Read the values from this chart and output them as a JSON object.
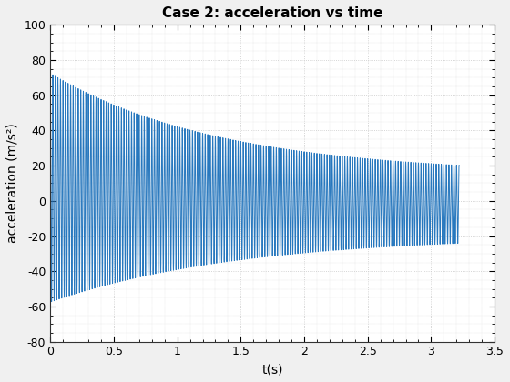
{
  "title": "Case 2: acceleration vs time",
  "xlabel": "t(s)",
  "ylabel": "acceleration (m/s²)",
  "xlim": [
    0,
    3.5
  ],
  "ylim": [
    -80,
    100
  ],
  "xticks": [
    0,
    0.5,
    1.0,
    1.5,
    2.0,
    2.5,
    3.0,
    3.5
  ],
  "yticks": [
    -80,
    -60,
    -40,
    -20,
    0,
    20,
    40,
    60,
    80,
    100
  ],
  "line_color": "#2878BE",
  "bg_color": "#F0F0F0",
  "plot_bg_color": "#FFFFFF",
  "grid_color": "#C8C8C8",
  "title_fontsize": 11,
  "label_fontsize": 10,
  "tick_fontsize": 9,
  "signal_freq_hz": 50.0,
  "sigma": 0.72,
  "A0": 65.0,
  "A_inf": 17.5,
  "dc0": 10.0,
  "dc_sigma": 0.9,
  "neg_extra": 0.0,
  "t_end": 3.22,
  "dt": 0.0005
}
